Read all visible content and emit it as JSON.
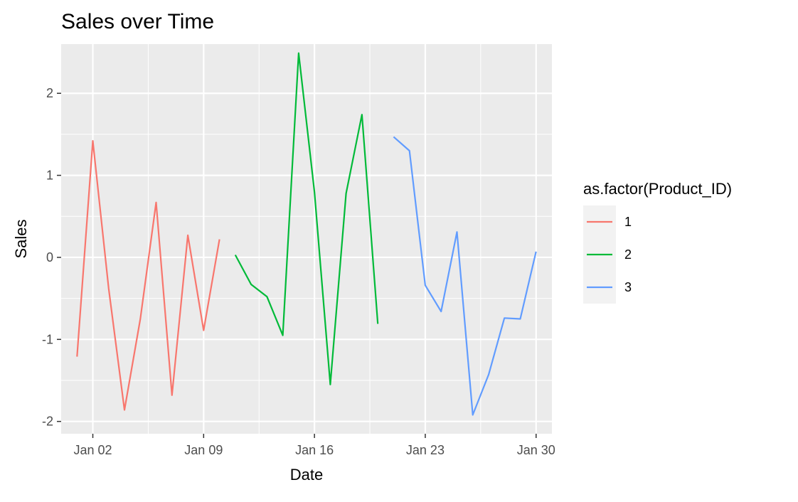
{
  "chart_data": {
    "type": "line",
    "title": "Sales over Time",
    "xlabel": "Date",
    "ylabel": "Sales",
    "xlim": [
      "2023-12-31",
      "2024-01-31"
    ],
    "ylim": [
      -2.15,
      2.6
    ],
    "x_ticks": [
      {
        "date": "2024-01-02",
        "label": "Jan 02"
      },
      {
        "date": "2024-01-09",
        "label": "Jan 09"
      },
      {
        "date": "2024-01-16",
        "label": "Jan 16"
      },
      {
        "date": "2024-01-23",
        "label": "Jan 23"
      },
      {
        "date": "2024-01-30",
        "label": "Jan 30"
      }
    ],
    "y_ticks": [
      {
        "value": 2,
        "label": "2"
      },
      {
        "value": 1,
        "label": "1"
      },
      {
        "value": 0,
        "label": "0"
      },
      {
        "value": -1,
        "label": "-1"
      },
      {
        "value": -2,
        "label": "-2"
      }
    ],
    "grid": true,
    "panel_background": "#ebebeb",
    "grid_color": "#ffffff",
    "legend": {
      "title": "as.factor(Product_ID)",
      "placement": "right"
    },
    "series": [
      {
        "name": "1",
        "color": "#f8766d",
        "x": [
          "2024-01-01",
          "2024-01-02",
          "2024-01-03",
          "2024-01-04",
          "2024-01-05",
          "2024-01-06",
          "2024-01-07",
          "2024-01-08",
          "2024-01-09",
          "2024-01-10"
        ],
        "y": [
          -1.21,
          1.42,
          -0.38,
          -1.86,
          -0.75,
          0.67,
          -1.68,
          0.27,
          -0.89,
          0.22
        ]
      },
      {
        "name": "2",
        "color": "#00ba38",
        "x": [
          "2024-01-11",
          "2024-01-12",
          "2024-01-13",
          "2024-01-14",
          "2024-01-15",
          "2024-01-16",
          "2024-01-17",
          "2024-01-18",
          "2024-01-19",
          "2024-01-20"
        ],
        "y": [
          0.03,
          -0.33,
          -0.48,
          -0.95,
          2.49,
          0.8,
          -1.55,
          0.78,
          1.74,
          -0.81
        ]
      },
      {
        "name": "3",
        "color": "#619cff",
        "x": [
          "2024-01-21",
          "2024-01-22",
          "2024-01-23",
          "2024-01-24",
          "2024-01-25",
          "2024-01-26",
          "2024-01-27",
          "2024-01-28",
          "2024-01-29",
          "2024-01-30"
        ],
        "y": [
          1.47,
          1.3,
          -0.34,
          -0.66,
          0.31,
          -1.92,
          -1.43,
          -0.74,
          -0.75,
          0.07
        ]
      }
    ]
  }
}
